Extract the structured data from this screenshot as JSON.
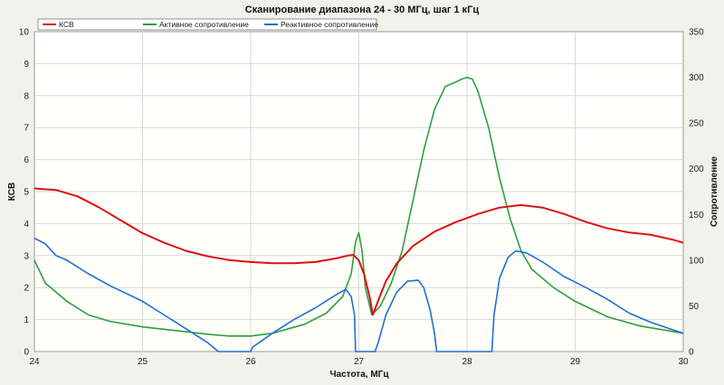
{
  "chart_data": {
    "type": "line",
    "title": "Сканирование диапазона 24 - 30 МГц, шаг 1 кГц",
    "xlabel": "Частота, МГц",
    "ylabel_left": "КСВ",
    "ylabel_right": "Сопротивление",
    "xlim": [
      24,
      30
    ],
    "ylim_left": [
      0,
      10
    ],
    "ylim_right": [
      0,
      350
    ],
    "x_ticks": [
      "24",
      "25",
      "26",
      "27",
      "28",
      "29",
      "30"
    ],
    "y_left_ticks": [
      "0",
      "1",
      "2",
      "3",
      "4",
      "5",
      "6",
      "7",
      "8",
      "9",
      "10"
    ],
    "y_right_ticks": [
      "0",
      "50",
      "100",
      "150",
      "200",
      "250",
      "300",
      "350"
    ],
    "grid": true,
    "legend_position": "top",
    "series": [
      {
        "name": "КСВ",
        "axis": "left",
        "color": "#dd1111",
        "x": [
          24.0,
          24.2,
          24.4,
          24.6,
          24.8,
          25.0,
          25.2,
          25.4,
          25.6,
          25.8,
          26.0,
          26.2,
          26.4,
          26.6,
          26.8,
          26.9,
          26.95,
          27.0,
          27.05,
          27.1,
          27.13,
          27.18,
          27.25,
          27.35,
          27.5,
          27.7,
          27.9,
          28.1,
          28.3,
          28.5,
          28.7,
          28.9,
          29.1,
          29.3,
          29.5,
          29.7,
          29.9,
          30.0
        ],
        "y": [
          5.1,
          5.05,
          4.85,
          4.5,
          4.1,
          3.7,
          3.4,
          3.15,
          2.98,
          2.86,
          2.8,
          2.76,
          2.76,
          2.8,
          2.92,
          3.0,
          3.02,
          2.85,
          2.4,
          1.7,
          1.15,
          1.6,
          2.2,
          2.75,
          3.3,
          3.75,
          4.05,
          4.3,
          4.5,
          4.58,
          4.5,
          4.3,
          4.05,
          3.85,
          3.72,
          3.65,
          3.5,
          3.4
        ]
      },
      {
        "name": "Активное сопротивление",
        "axis": "right",
        "color": "#2e9e3e",
        "x": [
          24.0,
          24.1,
          24.3,
          24.5,
          24.7,
          25.0,
          25.3,
          25.6,
          25.8,
          26.0,
          26.2,
          26.5,
          26.7,
          26.85,
          26.93,
          26.97,
          27.0,
          27.03,
          27.06,
          27.12,
          27.2,
          27.3,
          27.4,
          27.5,
          27.6,
          27.7,
          27.8,
          27.9,
          27.95,
          28.0,
          28.05,
          28.1,
          28.2,
          28.3,
          28.4,
          28.5,
          28.6,
          28.8,
          29.0,
          29.3,
          29.6,
          29.9,
          30.0
        ],
        "y": [
          100,
          75,
          55,
          40,
          33,
          27,
          23,
          19,
          17,
          17,
          20,
          30,
          42,
          60,
          85,
          120,
          130,
          110,
          70,
          40,
          50,
          75,
          110,
          165,
          220,
          265,
          290,
          295,
          298,
          300,
          298,
          285,
          245,
          190,
          145,
          110,
          90,
          70,
          55,
          38,
          28,
          22,
          20
        ]
      },
      {
        "name": "Реактивное сопротивление",
        "axis": "right",
        "color": "#1f6fd6",
        "x": [
          24.0,
          24.1,
          24.2,
          24.3,
          24.5,
          24.7,
          25.0,
          25.2,
          25.4,
          25.6,
          25.65,
          25.7,
          26.0,
          26.02,
          26.2,
          26.4,
          26.6,
          26.8,
          26.88,
          26.93,
          26.96,
          26.97,
          27.0,
          27.15,
          27.18,
          27.25,
          27.35,
          27.45,
          27.55,
          27.6,
          27.66,
          27.7,
          27.72,
          28.0,
          28.23,
          28.25,
          28.3,
          28.38,
          28.45,
          28.55,
          28.7,
          28.9,
          29.1,
          29.3,
          29.5,
          29.7,
          29.9,
          30.0
        ],
        "y": [
          124,
          118,
          105,
          100,
          85,
          72,
          55,
          40,
          25,
          10,
          5,
          0,
          0,
          5,
          20,
          35,
          48,
          63,
          68,
          60,
          40,
          0,
          0,
          0,
          10,
          40,
          65,
          77,
          78,
          70,
          45,
          20,
          0,
          0,
          0,
          40,
          80,
          103,
          110,
          108,
          98,
          82,
          70,
          57,
          42,
          32,
          24,
          20
        ]
      }
    ]
  }
}
